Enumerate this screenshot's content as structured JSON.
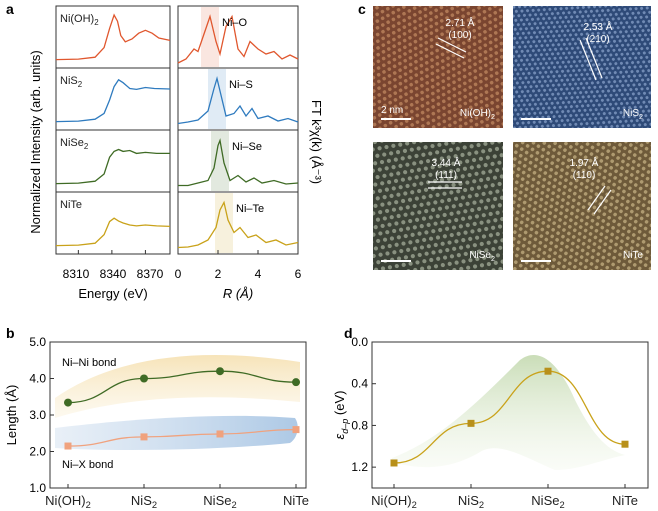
{
  "panel_labels": {
    "a": "a",
    "b": "b",
    "c": "c",
    "d": "d"
  },
  "panel_a": {
    "xanes": {
      "ylabel": "Normalized Intensity (arb. units)",
      "xlabel": "Energy (eV)",
      "xticks": [
        "8310",
        "8340",
        "8370"
      ],
      "xlim": [
        8290,
        8392
      ],
      "samples": [
        {
          "label": "Ni(OH)",
          "sub": "2",
          "color": "#e0572e",
          "x": [
            8290,
            8310,
            8325,
            8333,
            8338,
            8342,
            8345,
            8348,
            8352,
            8358,
            8364,
            8370,
            8376,
            8382,
            8392
          ],
          "y": [
            0.05,
            0.06,
            0.1,
            0.3,
            0.7,
            0.98,
            0.85,
            0.55,
            0.42,
            0.48,
            0.6,
            0.66,
            0.6,
            0.5,
            0.45
          ]
        },
        {
          "label": "NiS",
          "sub": "2",
          "color": "#2f7bbf",
          "x": [
            8290,
            8310,
            8325,
            8333,
            8338,
            8342,
            8346,
            8350,
            8356,
            8362,
            8370,
            8378,
            8392
          ],
          "y": [
            0.05,
            0.06,
            0.1,
            0.22,
            0.5,
            0.78,
            0.92,
            0.86,
            0.74,
            0.72,
            0.76,
            0.74,
            0.73
          ]
        },
        {
          "label": "NiSe",
          "sub": "2",
          "color": "#3f6b25",
          "x": [
            8290,
            8310,
            8325,
            8333,
            8338,
            8342,
            8346,
            8350,
            8356,
            8362,
            8370,
            8380,
            8392
          ],
          "y": [
            0.05,
            0.06,
            0.1,
            0.25,
            0.6,
            0.72,
            0.76,
            0.72,
            0.74,
            0.68,
            0.7,
            0.68,
            0.68
          ]
        },
        {
          "label": "NiTe",
          "sub": "",
          "color": "#c9a21a",
          "x": [
            8290,
            8310,
            8325,
            8333,
            8338,
            8342,
            8346,
            8350,
            8356,
            8362,
            8370,
            8380,
            8392
          ],
          "y": [
            0.05,
            0.06,
            0.1,
            0.28,
            0.55,
            0.62,
            0.56,
            0.52,
            0.48,
            0.46,
            0.48,
            0.46,
            0.45
          ]
        }
      ]
    },
    "ft": {
      "ylabel": "FT k³χ(k) (Å⁻³)",
      "xlabel": "R (Å)",
      "xticks": [
        "0",
        "2",
        "4",
        "6"
      ],
      "xlim": [
        0,
        6
      ],
      "samples": [
        {
          "bond_label": "Ni–O",
          "shade_center": 1.6,
          "color": "#e0572e",
          "x": [
            0,
            0.4,
            0.8,
            1.0,
            1.3,
            1.6,
            1.9,
            2.1,
            2.4,
            2.7,
            3.0,
            3.3,
            3.6,
            4.0,
            4.4,
            4.8,
            5.2,
            5.6,
            6.0
          ],
          "y": [
            0.02,
            0.1,
            0.3,
            0.25,
            0.6,
            0.95,
            0.45,
            0.2,
            0.75,
            0.95,
            0.3,
            0.15,
            0.45,
            0.3,
            0.2,
            0.25,
            0.1,
            0.18,
            0.1
          ]
        },
        {
          "bond_label": "Ni–S",
          "shade_center": 1.95,
          "color": "#2f7bbf",
          "x": [
            0,
            0.5,
            1.0,
            1.5,
            1.8,
            1.95,
            2.1,
            2.4,
            2.8,
            3.1,
            3.4,
            3.7,
            4.0,
            4.5,
            5.0,
            5.5,
            6.0
          ],
          "y": [
            0.05,
            0.08,
            0.12,
            0.3,
            0.75,
            0.95,
            0.7,
            0.2,
            0.25,
            0.4,
            0.2,
            0.35,
            0.15,
            0.2,
            0.1,
            0.15,
            0.08
          ]
        },
        {
          "bond_label": "Ni–Se",
          "shade_center": 2.1,
          "color": "#3f6b25",
          "x": [
            0,
            0.5,
            1.0,
            1.5,
            1.8,
            2.0,
            2.1,
            2.3,
            2.6,
            3.0,
            3.4,
            3.8,
            4.2,
            4.8,
            5.4,
            6.0
          ],
          "y": [
            0.05,
            0.05,
            0.1,
            0.15,
            0.4,
            0.85,
            0.95,
            0.5,
            0.15,
            0.25,
            0.12,
            0.2,
            0.1,
            0.15,
            0.08,
            0.1
          ]
        },
        {
          "bond_label": "Ni–Te",
          "shade_center": 2.3,
          "color": "#c9a21a",
          "x": [
            0,
            0.5,
            1.0,
            1.5,
            1.9,
            2.1,
            2.3,
            2.5,
            2.8,
            3.1,
            3.5,
            3.9,
            4.4,
            4.9,
            5.4,
            6.0
          ],
          "y": [
            0.05,
            0.06,
            0.1,
            0.2,
            0.45,
            0.8,
            0.95,
            0.6,
            0.35,
            0.45,
            0.25,
            0.3,
            0.15,
            0.2,
            0.1,
            0.15
          ]
        }
      ]
    }
  },
  "panel_b": {
    "chart_data": {
      "type": "line",
      "categories": [
        {
          "main": "Ni(OH)",
          "sub": "2"
        },
        {
          "main": "NiS",
          "sub": "2"
        },
        {
          "main": "NiSe",
          "sub": "2"
        },
        {
          "main": "NiTe",
          "sub": ""
        }
      ],
      "ylabel": "Length (Å)",
      "ylim": [
        1.0,
        5.0
      ],
      "yticks": [
        "1.0",
        "2.0",
        "3.0",
        "4.0",
        "5.0"
      ],
      "series": [
        {
          "name": "Ni–Ni bond",
          "values": [
            3.34,
            4.0,
            4.2,
            3.9
          ],
          "color": "#3f6b25"
        },
        {
          "name": "Ni–X bond",
          "values": [
            2.15,
            2.4,
            2.48,
            2.6
          ],
          "color": "#f0a27e"
        }
      ]
    }
  },
  "panel_c": {
    "images": [
      {
        "sample": "Ni(OH)",
        "sub": "2",
        "spacing": "2.71 Å",
        "plane": "(100)",
        "scale": "2 nm",
        "bg": "#7a4530",
        "dots": "#d9a073"
      },
      {
        "sample": "NiS",
        "sub": "2",
        "spacing": "2.53 Å",
        "plane": "(210)",
        "scale": "",
        "bg": "#2e4a78",
        "dots": "#a8c0e6"
      },
      {
        "sample": "NiSe",
        "sub": "2",
        "spacing": "3.44 Å",
        "plane": "(111)",
        "scale": "",
        "bg": "#3c4237",
        "dots": "#c9d3bd"
      },
      {
        "sample": "NiTe",
        "sub": "",
        "spacing": "1.97 Å",
        "plane": "(110)",
        "scale": "",
        "bg": "#6e5a3a",
        "dots": "#e3cf9c"
      }
    ]
  },
  "panel_d": {
    "chart_data": {
      "type": "line",
      "categories": [
        {
          "main": "Ni(OH)",
          "sub": "2"
        },
        {
          "main": "NiS",
          "sub": "2"
        },
        {
          "main": "NiSe",
          "sub": "2"
        },
        {
          "main": "NiTe",
          "sub": ""
        }
      ],
      "ylabel_main": "ε",
      "ylabel_sub": "d–p",
      "ylabel_unit": " (eV)",
      "ylim": [
        1.4,
        0.0
      ],
      "yticks": [
        "0.0",
        "0.4",
        "0.8",
        "1.2"
      ],
      "ytick_values": [
        0.0,
        0.4,
        0.8,
        1.2
      ],
      "series": [
        {
          "name": "ε d–p",
          "values": [
            1.16,
            0.78,
            0.28,
            0.98
          ],
          "color": "#c9a21a"
        }
      ]
    }
  }
}
